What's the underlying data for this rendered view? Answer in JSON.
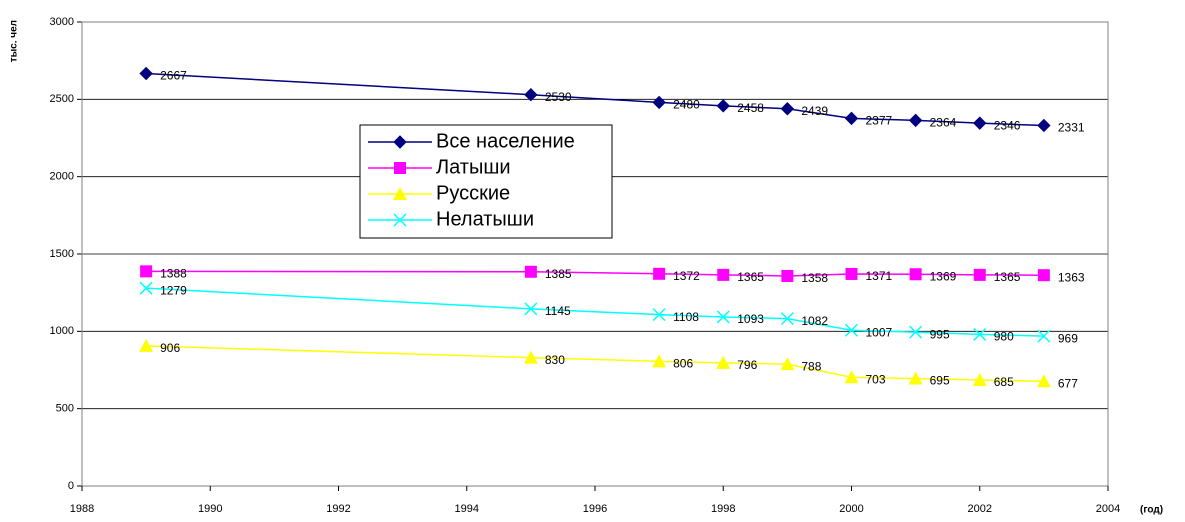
{
  "chart_data": {
    "type": "line",
    "y_label": "тыс. чел",
    "x_label": "(год)",
    "x": [
      1989,
      1995,
      1997,
      1998,
      1999,
      2000,
      2001,
      2002,
      2003
    ],
    "series": [
      {
        "name": "Все население",
        "color": "#000080",
        "marker": "diamond",
        "values": [
          2667,
          2530,
          2480,
          2458,
          2439,
          2377,
          2364,
          2346,
          2331
        ]
      },
      {
        "name": "Латыши",
        "color": "#ff00ff",
        "marker": "square",
        "values": [
          1388,
          1385,
          1372,
          1365,
          1358,
          1371,
          1369,
          1365,
          1363
        ]
      },
      {
        "name": "Русские",
        "color": "#ffff00",
        "marker": "triangle",
        "values": [
          906,
          830,
          806,
          796,
          788,
          703,
          695,
          685,
          677
        ]
      },
      {
        "name": "Нелатыши",
        "color": "#00ffff",
        "marker": "x",
        "values": [
          1279,
          1145,
          1108,
          1093,
          1082,
          1007,
          995,
          980,
          969
        ]
      }
    ],
    "xlim": [
      1988,
      2004
    ],
    "xticks": [
      1988,
      1990,
      1992,
      1994,
      1996,
      1998,
      2000,
      2002,
      2004
    ],
    "ylim": [
      0,
      3000
    ],
    "yticks": [
      0,
      500,
      1000,
      1500,
      2000,
      2500,
      3000
    ],
    "grid": true
  }
}
